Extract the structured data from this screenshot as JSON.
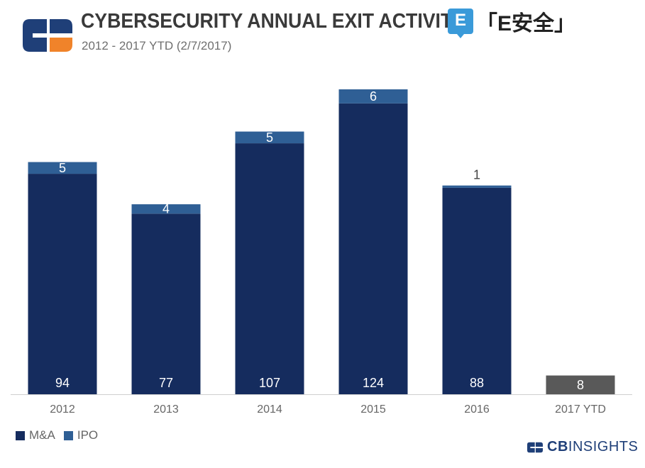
{
  "header": {
    "title": "CYBERSECURITY ANNUAL EXIT ACTIVITY",
    "subtitle": "2012 - 2017 YTD (2/7/2017)",
    "badge_letter": "E",
    "badge_text": "「E安全」"
  },
  "legend": {
    "items": [
      {
        "label": "M&A",
        "color": "#152c5e"
      },
      {
        "label": "IPO",
        "color": "#2f5f95"
      }
    ]
  },
  "brand": {
    "part1": "CB",
    "part2": "INSIGHTS"
  },
  "colors": {
    "ma": "#152c5e",
    "ipo": "#2f5f95",
    "ytd": "#595959",
    "axis": "#cfcfcf",
    "tick": "#666666"
  },
  "chart_data": {
    "type": "bar",
    "stacked": true,
    "title": "CYBERSECURITY ANNUAL EXIT ACTIVITY",
    "subtitle": "2012 - 2017 YTD (2/7/2017)",
    "categories": [
      "2012",
      "2013",
      "2014",
      "2015",
      "2016",
      "2017 YTD"
    ],
    "series": [
      {
        "name": "M&A",
        "values": [
          94,
          77,
          107,
          124,
          88,
          null
        ]
      },
      {
        "name": "IPO",
        "values": [
          5,
          4,
          5,
          6,
          1,
          null
        ]
      }
    ],
    "ytd_total": {
      "category": "2017 YTD",
      "value": 8
    },
    "xlabel": "",
    "ylabel": "",
    "ylim": [
      0,
      130
    ],
    "grid": false,
    "legend": "bottom-left"
  }
}
